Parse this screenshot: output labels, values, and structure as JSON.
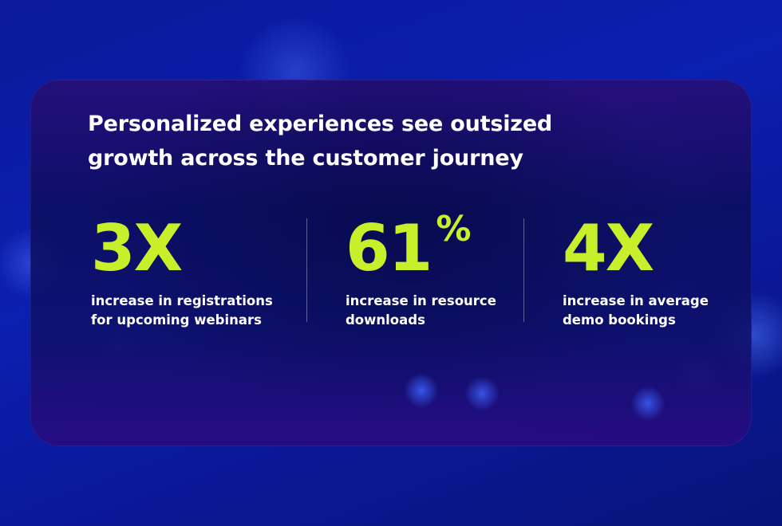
{
  "headline": "Personalized experiences see outsized growth across the customer journey",
  "stats": [
    {
      "value": "3X",
      "suffix": "",
      "description": "increase in registrations for upcoming webinars"
    },
    {
      "value": "61",
      "suffix": "%",
      "description": "increase in resource downloads"
    },
    {
      "value": "4X",
      "suffix": "",
      "description": "increase in average demo bookings"
    }
  ],
  "colors": {
    "accent": "#c8f02a",
    "text": "#ffffff",
    "background": "#0b1fb0"
  }
}
